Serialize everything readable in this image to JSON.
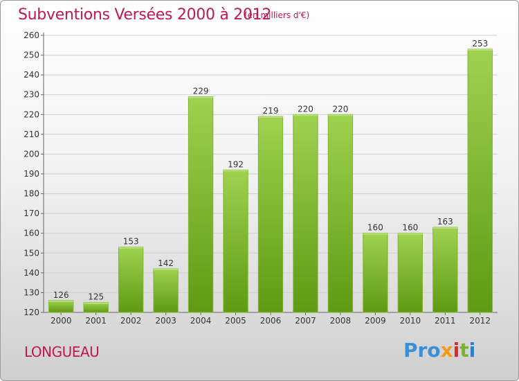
{
  "title": "Subventions Versées 2000 à 2012",
  "subtitle": "(en milliers d'€)",
  "location": "LONGUEAU",
  "logo": {
    "text": "Proxiti",
    "parts": [
      "Pro",
      "x",
      "i",
      "t",
      "i"
    ],
    "colors": [
      "#3a8fd8",
      "#f09a1a",
      "#e2262b",
      "#7ab42c",
      "#2f7fcf"
    ]
  },
  "chart_data": {
    "type": "bar",
    "title": "Subventions Versées 2000 à 2012",
    "subtitle": "(en milliers d'€)",
    "categories": [
      "2000",
      "2001",
      "2002",
      "2003",
      "2004",
      "2005",
      "2006",
      "2007",
      "2008",
      "2009",
      "2010",
      "2011",
      "2012"
    ],
    "values": [
      126,
      125,
      153,
      142,
      229,
      192,
      219,
      220,
      220,
      160,
      160,
      163,
      253
    ],
    "ylim": [
      120,
      260
    ],
    "yticks": [
      120,
      130,
      140,
      150,
      160,
      170,
      180,
      190,
      200,
      210,
      220,
      230,
      240,
      250,
      260
    ],
    "grid": true,
    "bar_color": "#8cc63f",
    "bar_color_dark": "#5e9a12"
  }
}
